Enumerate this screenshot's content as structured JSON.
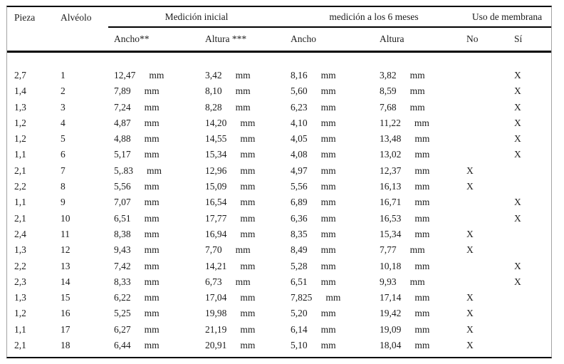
{
  "table": {
    "columns": {
      "pieza": "Pieza",
      "alveolo": "Alvéolo",
      "grupo_inicial": "Medición inicial",
      "grupo_6meses": "medición a los 6 meses",
      "grupo_membrana": "Uso de membrana",
      "ancho_inicial": "Ancho**",
      "altura_inicial": "Altura ***",
      "ancho_6meses": "Ancho",
      "altura_6meses": "Altura",
      "no": "No",
      "si": "Sí"
    },
    "unit": "mm",
    "mark": "X",
    "rows": [
      {
        "pieza": "2,7",
        "alveolo": "1",
        "ancho_inicial": "12,47",
        "altura_inicial": "3,42",
        "ancho_6meses": "8,16",
        "altura_6meses": "3,82",
        "membrana": "si"
      },
      {
        "pieza": "1,4",
        "alveolo": "2",
        "ancho_inicial": "7,89",
        "altura_inicial": "8,10",
        "ancho_6meses": "5,60",
        "altura_6meses": "8,59",
        "membrana": "si"
      },
      {
        "pieza": "1,3",
        "alveolo": "3",
        "ancho_inicial": "7,24",
        "altura_inicial": "8,28",
        "ancho_6meses": "6,23",
        "altura_6meses": "7,68",
        "membrana": "si"
      },
      {
        "pieza": "1,2",
        "alveolo": "4",
        "ancho_inicial": "4,87",
        "altura_inicial": "14,20",
        "ancho_6meses": "4,10",
        "altura_6meses": "11,22",
        "membrana": "si"
      },
      {
        "pieza": "1,2",
        "alveolo": "5",
        "ancho_inicial": "4,88",
        "altura_inicial": "14,55",
        "ancho_6meses": "4,05",
        "altura_6meses": "13,48",
        "membrana": "si"
      },
      {
        "pieza": "1,1",
        "alveolo": "6",
        "ancho_inicial": "5,17",
        "altura_inicial": "15,34",
        "ancho_6meses": "4,08",
        "altura_6meses": "13,02",
        "membrana": "si"
      },
      {
        "pieza": "2,1",
        "alveolo": "7",
        "ancho_inicial": "5,.83",
        "altura_inicial": "12,96",
        "ancho_6meses": "4,97",
        "altura_6meses": "12,37",
        "membrana": "no"
      },
      {
        "pieza": "2,2",
        "alveolo": "8",
        "ancho_inicial": "5,56",
        "altura_inicial": "15,09",
        "ancho_6meses": "5,56",
        "altura_6meses": "16,13",
        "membrana": "no"
      },
      {
        "pieza": "1,1",
        "alveolo": "9",
        "ancho_inicial": "7,07",
        "altura_inicial": "16,54",
        "ancho_6meses": "6,89",
        "altura_6meses": "16,71",
        "membrana": "si"
      },
      {
        "pieza": "2,1",
        "alveolo": "10",
        "ancho_inicial": "6,51",
        "altura_inicial": "17,77",
        "ancho_6meses": "6,36",
        "altura_6meses": "16,53",
        "membrana": "si"
      },
      {
        "pieza": "2,4",
        "alveolo": "11",
        "ancho_inicial": "8,38",
        "altura_inicial": "16,94",
        "ancho_6meses": "8,35",
        "altura_6meses": "15,34",
        "membrana": "no"
      },
      {
        "pieza": "1,3",
        "alveolo": "12",
        "ancho_inicial": "9,43",
        "altura_inicial": "7,70",
        "ancho_6meses": "8,49",
        "altura_6meses": "7,77",
        "membrana": "no"
      },
      {
        "pieza": "2,2",
        "alveolo": "13",
        "ancho_inicial": "7,42",
        "altura_inicial": "14,21",
        "ancho_6meses": "5,28",
        "altura_6meses": "10,18",
        "membrana": "si"
      },
      {
        "pieza": "2,3",
        "alveolo": "14",
        "ancho_inicial": "8,33",
        "altura_inicial": "6,73",
        "ancho_6meses": "6,51",
        "altura_6meses": "9,93",
        "membrana": "si"
      },
      {
        "pieza": "1,3",
        "alveolo": "15",
        "ancho_inicial": "6,22",
        "altura_inicial": "17,04",
        "ancho_6meses": "7,825",
        "altura_6meses": "17,14",
        "membrana": "no"
      },
      {
        "pieza": "1,2",
        "alveolo": "16",
        "ancho_inicial": "5,25",
        "altura_inicial": "19,98",
        "ancho_6meses": "5,20",
        "altura_6meses": "19,42",
        "membrana": "no"
      },
      {
        "pieza": "1,1",
        "alveolo": "17",
        "ancho_inicial": "6,27",
        "altura_inicial": "21,19",
        "ancho_6meses": "6,14",
        "altura_6meses": "19,09",
        "membrana": "no"
      },
      {
        "pieza": "2,1",
        "alveolo": "18",
        "ancho_inicial": "6,44",
        "altura_inicial": "20,91",
        "ancho_6meses": "5,10",
        "altura_6meses": "18,04",
        "membrana": "no"
      }
    ]
  },
  "colors": {
    "background": "#ffffff",
    "text": "#1c1c1c",
    "rule": "#000000",
    "side_rail": "#a3a3a3"
  }
}
